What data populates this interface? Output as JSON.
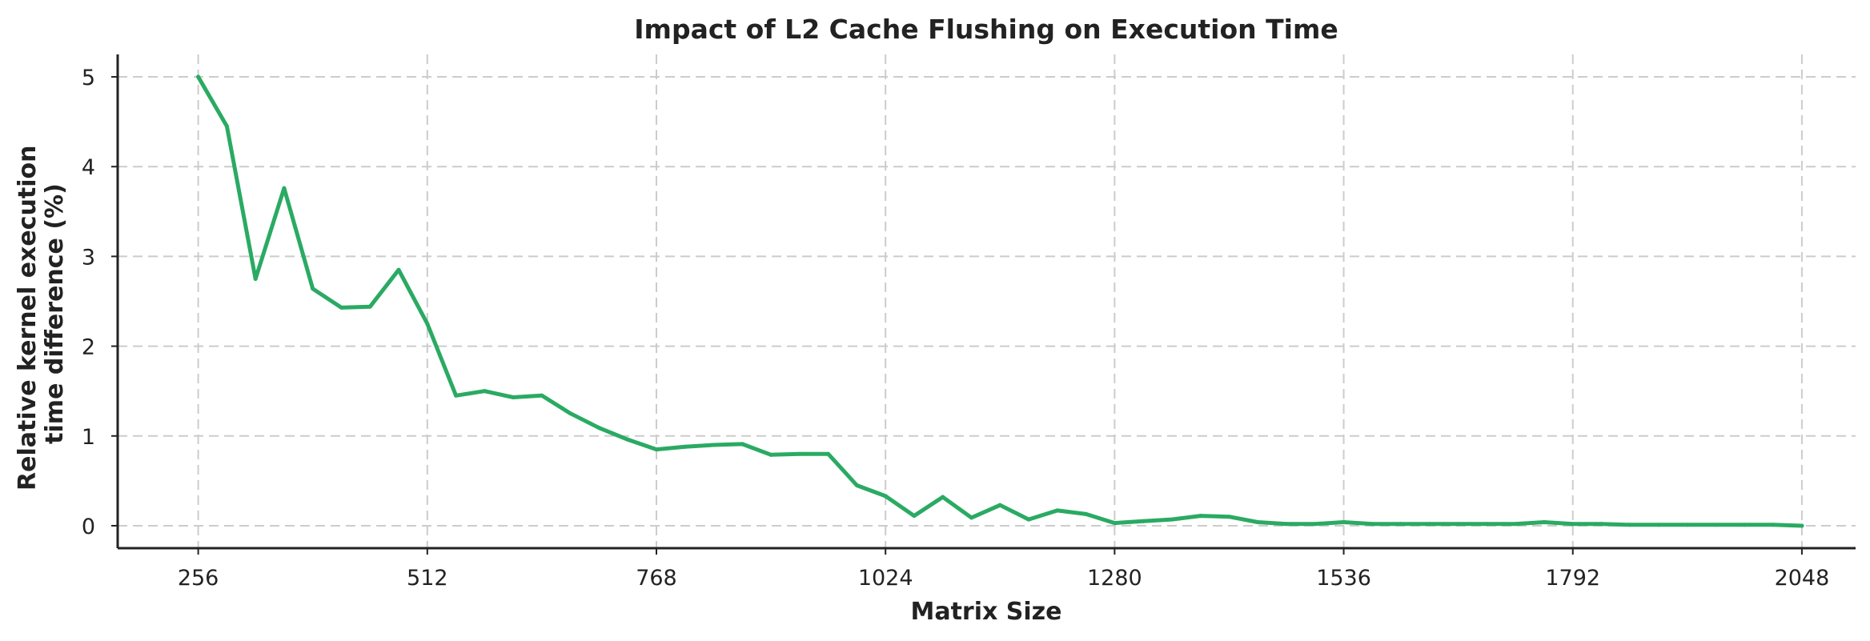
{
  "chart_data": {
    "type": "line",
    "title": "Impact of L2 Cache Flushing on Execution Time",
    "xlabel": "Matrix Size",
    "ylabel_lines": [
      "Relative kernel execution",
      "time difference (%)"
    ],
    "xlim": [
      166,
      2108
    ],
    "ylim": [
      -0.25,
      5.25
    ],
    "xticks": [
      256,
      512,
      768,
      1024,
      1280,
      1536,
      1792,
      2048
    ],
    "yticks": [
      0,
      1,
      2,
      3,
      4,
      5
    ],
    "grid": true,
    "legend": "none",
    "series": [
      {
        "color": "#2aaa63",
        "x": [
          256,
          288,
          320,
          352,
          384,
          416,
          448,
          480,
          512,
          544,
          576,
          608,
          640,
          672,
          704,
          736,
          768,
          800,
          832,
          864,
          896,
          928,
          960,
          992,
          1024,
          1056,
          1088,
          1120,
          1152,
          1184,
          1216,
          1248,
          1280,
          1312,
          1344,
          1376,
          1408,
          1440,
          1472,
          1504,
          1536,
          1568,
          1600,
          1632,
          1664,
          1696,
          1728,
          1760,
          1792,
          1824,
          1856,
          1888,
          1920,
          1952,
          1984,
          2016,
          2048
        ],
        "y": [
          5.0,
          4.45,
          2.75,
          3.76,
          2.64,
          2.43,
          2.44,
          2.85,
          2.25,
          1.45,
          1.5,
          1.43,
          1.45,
          1.25,
          1.09,
          0.96,
          0.85,
          0.88,
          0.9,
          0.91,
          0.79,
          0.8,
          0.8,
          0.45,
          0.33,
          0.11,
          0.32,
          0.09,
          0.23,
          0.07,
          0.17,
          0.13,
          0.03,
          0.05,
          0.07,
          0.11,
          0.1,
          0.04,
          0.02,
          0.02,
          0.04,
          0.02,
          0.02,
          0.02,
          0.02,
          0.02,
          0.02,
          0.04,
          0.02,
          0.02,
          0.01,
          0.01,
          0.01,
          0.01,
          0.01,
          0.01,
          0.0
        ]
      }
    ]
  }
}
